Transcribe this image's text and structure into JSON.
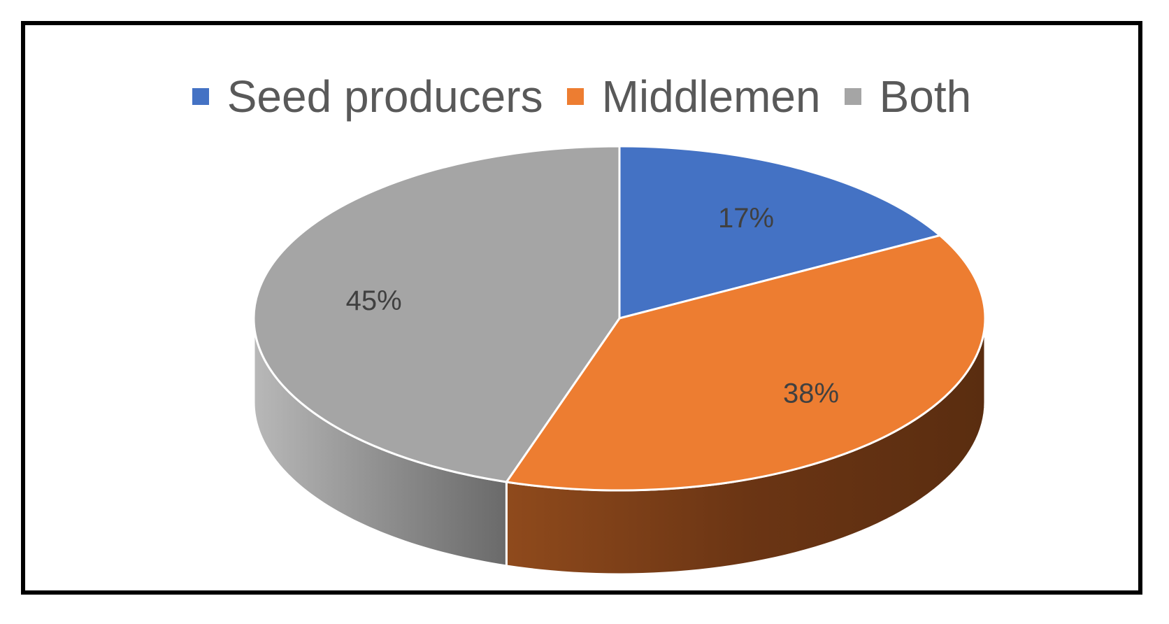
{
  "chart_data": {
    "type": "pie",
    "style": "3d",
    "categories": [
      "Seed producers",
      "Middlemen",
      "Both"
    ],
    "values": [
      17,
      38,
      45
    ],
    "data_labels": [
      "17%",
      "38%",
      "45%"
    ],
    "legend": {
      "placement": "top",
      "entries": [
        {
          "label": "Seed producers",
          "color": "#4472C4"
        },
        {
          "label": "Middlemen",
          "color": "#ED7D31"
        },
        {
          "label": "Both",
          "color": "#A5A5A5"
        }
      ]
    },
    "title": "",
    "colors": {
      "Seed producers": "#4472C4",
      "Middlemen": "#ED7D31",
      "Both": "#A5A5A5"
    }
  }
}
